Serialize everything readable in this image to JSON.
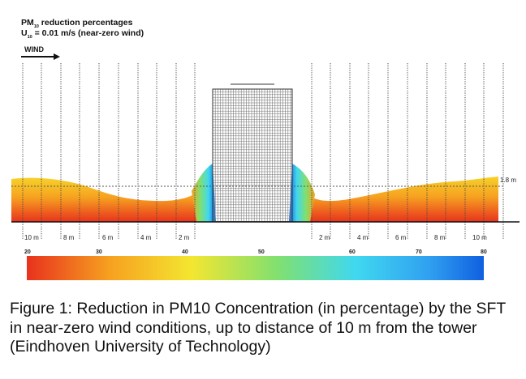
{
  "figure": {
    "title_line1_prefix": "PM",
    "title_line1_sub": "10",
    "title_line1_suffix": " reduction percentages",
    "title_line2_prefix": "U",
    "title_line2_sub": "10",
    "title_line2_suffix": " = 0.01 m/s (near-zero wind)",
    "wind_label": "WIND",
    "height_label": "1.8 m",
    "distance_labels_left": [
      "10 m",
      "8 m",
      "6 m",
      "4 m",
      "2 m"
    ],
    "distance_labels_right": [
      "2 m",
      "4 m",
      "6 m",
      "8 m",
      "10 m"
    ],
    "scale_labels": [
      "20",
      "30",
      "40",
      "50",
      "60",
      "70",
      "80"
    ],
    "colors": {
      "red": "#e8321e",
      "orange": "#f6a020",
      "yellow": "#f4e630",
      "green": "#80e070",
      "cyan": "#40d8f0",
      "blue": "#1060e0"
    }
  },
  "caption": "Figure 1: Reduction in PM10 Concentration (in percentage) by the SFT in near-zero wind conditions, up to distance of 10 m from the tower (Eindhoven University of Technology)"
}
